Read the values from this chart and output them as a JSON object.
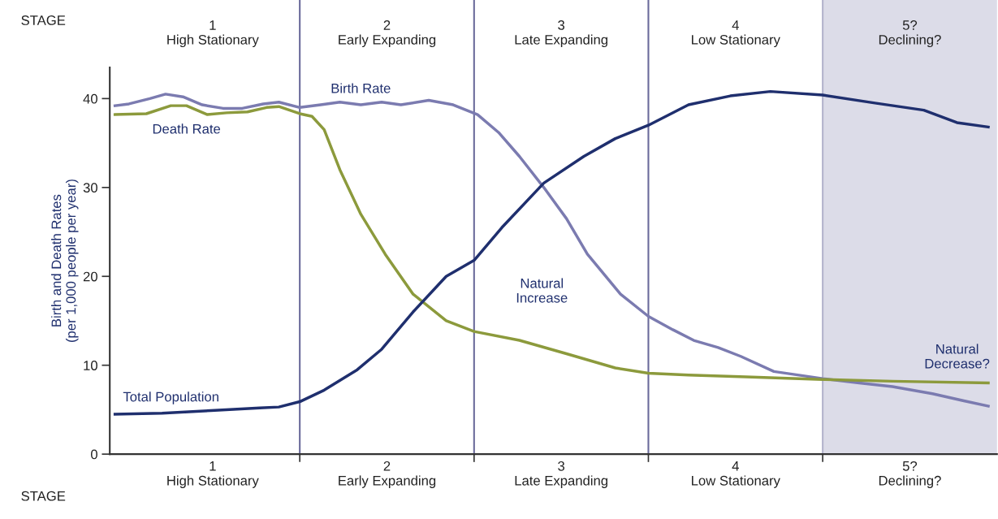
{
  "chart_data": {
    "type": "line",
    "ylabel": "Birth and Death Rates\n(per 1,000 people per year)",
    "xlabel": "STAGE",
    "x2label": "STAGE",
    "xlim": [
      0.41,
      5.5
    ],
    "ylim": [
      0,
      43.5
    ],
    "x2lim": [
      0.41,
      5.5
    ],
    "yticks": [
      0,
      10,
      20,
      30,
      40
    ],
    "xticks": [
      {
        "value": 1,
        "label": "1\nHigh Stationary"
      },
      {
        "value": 2,
        "label": "2\nEarly Expanding"
      },
      {
        "value": 3,
        "label": "3\nLate Expanding"
      },
      {
        "value": 4,
        "label": "4\nLow Stationary"
      },
      {
        "value": 5,
        "label": "5?\nDeclining?"
      }
    ],
    "x2ticks": [
      {
        "value": 1,
        "label": "1\nHigh Stationary"
      },
      {
        "value": 2,
        "label": "2\nEarly Expanding"
      },
      {
        "value": 3,
        "label": "3\nLate Expanding"
      },
      {
        "value": 4,
        "label": "4\nLow Stationary"
      },
      {
        "value": 5,
        "label": "5?\nDeclining?"
      }
    ],
    "grid": false,
    "marker": "none",
    "line_style": "solid",
    "series": [
      {
        "name": "Birth Rate",
        "color": "#7b7bb0",
        "x": [
          0.44,
          0.52,
          0.64,
          0.73,
          0.83,
          0.94,
          1.06,
          1.17,
          1.29,
          1.38,
          1.5,
          1.62,
          1.73,
          1.85,
          1.97,
          2.08,
          2.24,
          2.38,
          2.52,
          2.64,
          2.76,
          2.9,
          3.03,
          3.15,
          3.34,
          3.5,
          3.64,
          3.76,
          3.9,
          4.03,
          4.22,
          4.5,
          4.71,
          4.9,
          5.13,
          5.31,
          5.45
        ],
        "values": [
          39.2,
          39.4,
          40.0,
          40.5,
          40.2,
          39.3,
          38.9,
          38.9,
          39.4,
          39.6,
          39.0,
          39.3,
          39.6,
          39.3,
          39.6,
          39.3,
          39.8,
          39.3,
          38.2,
          36.2,
          33.5,
          30,
          26.5,
          22.5,
          18,
          15.5,
          14,
          12.8,
          12,
          11,
          9.3,
          8.5,
          8,
          7.6,
          6.8,
          6,
          5.4
        ]
      },
      {
        "name": "Death Rate",
        "color": "#8c9a3c",
        "x": [
          0.44,
          0.62,
          0.76,
          0.85,
          0.97,
          1.08,
          1.2,
          1.31,
          1.38,
          1.5,
          1.57,
          1.64,
          1.73,
          1.85,
          1.99,
          2.15,
          2.34,
          2.5,
          2.76,
          3.03,
          3.31,
          3.5,
          3.73,
          4.06,
          4.5,
          4.9,
          5.45
        ],
        "values": [
          38.2,
          38.3,
          39.2,
          39.2,
          38.2,
          38.4,
          38.5,
          39.0,
          39.1,
          38.3,
          38,
          36.5,
          32,
          27,
          22.5,
          18,
          15,
          13.8,
          12.8,
          11.3,
          9.7,
          9.1,
          8.9,
          8.7,
          8.4,
          8.2,
          8.0
        ]
      },
      {
        "name": "Total Population",
        "color": "#1f2f6e",
        "x": [
          0.44,
          0.71,
          0.99,
          1.27,
          1.38,
          1.5,
          1.64,
          1.83,
          1.97,
          2.15,
          2.34,
          2.5,
          2.66,
          2.9,
          3.13,
          3.31,
          3.5,
          3.73,
          3.97,
          4.2,
          4.5,
          4.8,
          5.08,
          5.27,
          5.45
        ],
        "values": [
          4.5,
          4.6,
          4.9,
          5.2,
          5.3,
          5.9,
          7.2,
          9.5,
          11.8,
          16,
          20,
          21.8,
          25.5,
          30.5,
          33.5,
          35.5,
          37,
          39.3,
          40.3,
          40.8,
          40.4,
          39.5,
          38.7,
          37.3,
          36.8
        ]
      }
    ],
    "ref_lines": [
      {
        "axis": "x",
        "value": 1.5,
        "color": "#6a6a9a"
      },
      {
        "axis": "x",
        "value": 2.5,
        "color": "#6a6a9a"
      },
      {
        "axis": "x",
        "value": 3.5,
        "color": "#6a6a9a"
      },
      {
        "axis": "x",
        "value": 4.5,
        "color": "#b4b4cc"
      }
    ],
    "bands": [
      {
        "axis": "x",
        "from": 4.5,
        "to": 5.5,
        "color": "#dcdce8"
      }
    ],
    "annotations": [
      "Natural\nIncrease",
      "Natural\nDecrease?"
    ]
  }
}
